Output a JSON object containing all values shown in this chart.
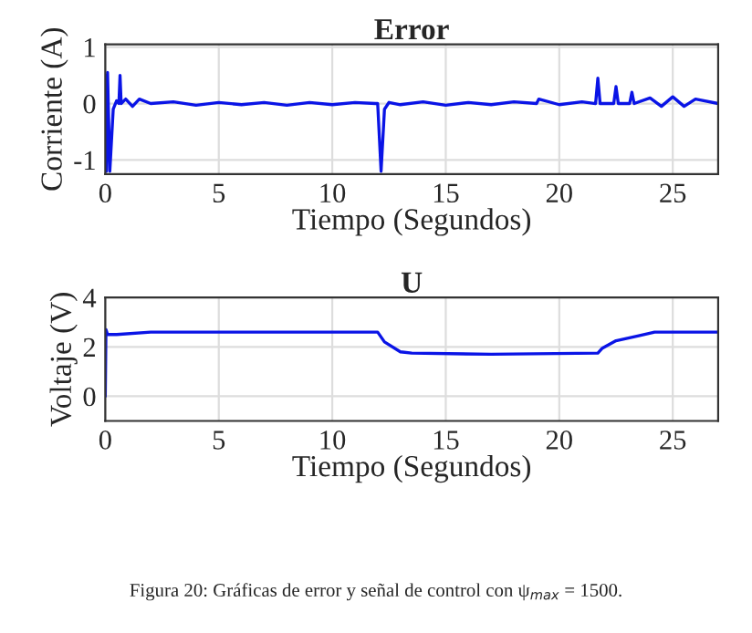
{
  "chart_data": [
    {
      "type": "line",
      "title": "Error",
      "xlabel": "Tiempo (Segundos)",
      "ylabel": "Corriente (A)",
      "xlim": [
        0,
        27
      ],
      "ylim": [
        -1.25,
        1.05
      ],
      "xticks": [
        0,
        5,
        10,
        15,
        20,
        25
      ],
      "yticks": [
        -1,
        0,
        1
      ],
      "grid": true,
      "series": [
        {
          "color": "#0a14e6",
          "x": [
            0,
            0.05,
            0.1,
            0.2,
            0.35,
            0.5,
            0.6,
            0.65,
            0.7,
            0.9,
            1.2,
            1.5,
            2,
            3,
            4,
            5,
            6,
            7,
            8,
            9,
            10,
            11,
            11.9,
            12.0,
            12.15,
            12.3,
            12.5,
            13,
            14,
            15,
            16,
            17,
            18,
            19,
            19.1,
            20,
            21,
            21.6,
            21.7,
            21.8,
            22.4,
            22.5,
            22.6,
            23.1,
            23.2,
            23.3,
            24,
            24.5,
            25,
            25.5,
            26,
            27
          ],
          "values": [
            0.5,
            -1.2,
            0.55,
            -1.2,
            -0.1,
            0.05,
            0,
            0.5,
            0,
            0.08,
            -0.05,
            0.08,
            0,
            0.03,
            -0.03,
            0.02,
            -0.02,
            0.02,
            -0.03,
            0.02,
            -0.02,
            0.02,
            0,
            0,
            -1.2,
            -0.1,
            0.02,
            -0.02,
            0.03,
            -0.03,
            0.02,
            -0.02,
            0.03,
            0,
            0.08,
            -0.02,
            0.03,
            0,
            0.45,
            0,
            0,
            0.3,
            0,
            0,
            0.2,
            0,
            0.1,
            -0.05,
            0.12,
            -0.05,
            0.08,
            0
          ]
        }
      ]
    },
    {
      "type": "line",
      "title": "U",
      "xlabel": "Tiempo (Segundos)",
      "ylabel": "Voltaje (V)",
      "xlim": [
        0,
        27
      ],
      "ylim": [
        -1,
        4
      ],
      "xticks": [
        0,
        5,
        10,
        15,
        20,
        25
      ],
      "yticks": [
        0,
        2,
        4
      ],
      "grid": true,
      "annotations": [
        "Figura 20: Gráficas de error y señal de control con ψ$_{max}$ = 1500."
      ],
      "series": [
        {
          "color": "#0a14e6",
          "x": [
            0,
            0.03,
            0.1,
            0.5,
            2,
            12,
            12.3,
            13,
            13.5,
            17,
            21.7,
            21.9,
            22.5,
            23.5,
            24.2,
            27
          ],
          "values": [
            0,
            2.7,
            2.5,
            2.5,
            2.6,
            2.6,
            2.2,
            1.8,
            1.75,
            1.7,
            1.75,
            1.95,
            2.25,
            2.45,
            2.6,
            2.6
          ]
        }
      ]
    }
  ]
}
